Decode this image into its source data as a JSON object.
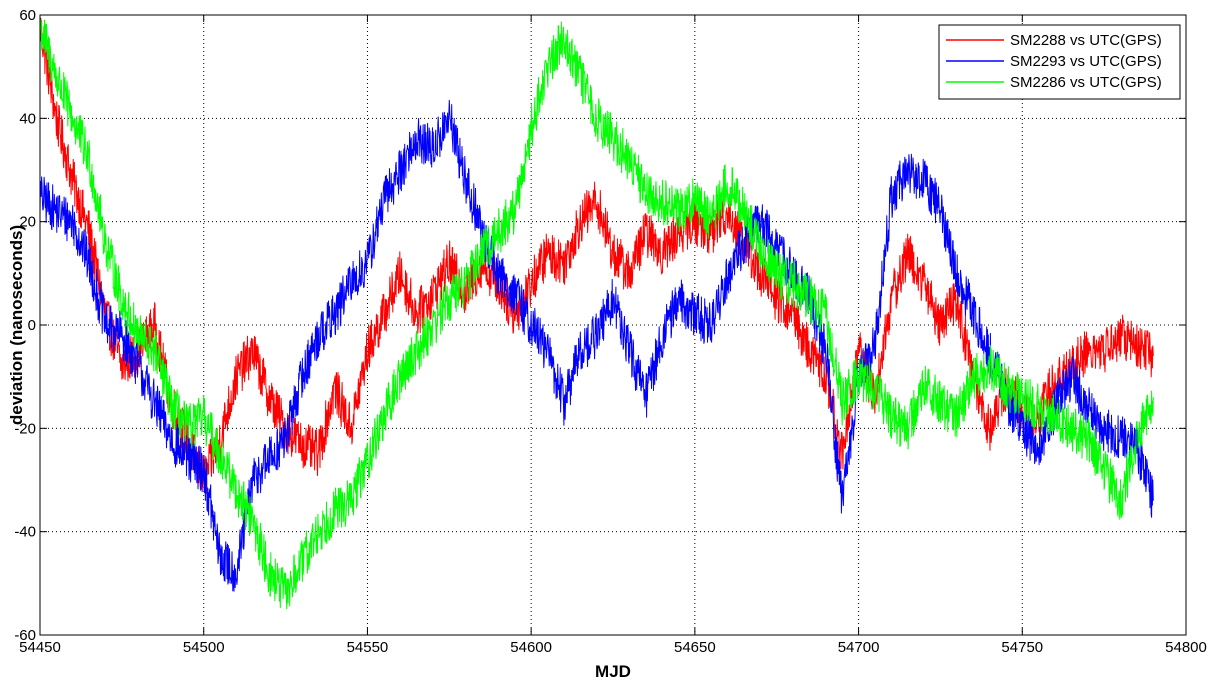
{
  "chart_data": {
    "type": "line",
    "title": "",
    "xlabel": "MJD",
    "ylabel": "deviation (nanoseconds)",
    "xlim": [
      54450,
      54800
    ],
    "ylim": [
      -60,
      60
    ],
    "x_ticks": [
      "54450",
      "54500",
      "54550",
      "54600",
      "54650",
      "54700",
      "54750",
      "54800"
    ],
    "y_ticks": [
      "-60",
      "-40",
      "-20",
      "0",
      "20",
      "40",
      "60"
    ],
    "grid": true,
    "legend_position": "top-right",
    "series": [
      {
        "name": "SM2288 vs UTC(GPS)",
        "color": "#ff0000",
        "points": [
          [
            54450,
            58
          ],
          [
            54455,
            40
          ],
          [
            54460,
            28
          ],
          [
            54465,
            18
          ],
          [
            54470,
            2
          ],
          [
            54475,
            -8
          ],
          [
            54480,
            -5
          ],
          [
            54485,
            0
          ],
          [
            54490,
            -15
          ],
          [
            54495,
            -22
          ],
          [
            54500,
            -30
          ],
          [
            54505,
            -22
          ],
          [
            54510,
            -10
          ],
          [
            54515,
            -5
          ],
          [
            54520,
            -14
          ],
          [
            54525,
            -20
          ],
          [
            54530,
            -23
          ],
          [
            54535,
            -25
          ],
          [
            54540,
            -12
          ],
          [
            54545,
            -20
          ],
          [
            54550,
            -5
          ],
          [
            54555,
            2
          ],
          [
            54560,
            10
          ],
          [
            54565,
            2
          ],
          [
            54570,
            6
          ],
          [
            54575,
            12
          ],
          [
            54580,
            6
          ],
          [
            54585,
            12
          ],
          [
            54590,
            8
          ],
          [
            54595,
            2
          ],
          [
            54600,
            8
          ],
          [
            54605,
            14
          ],
          [
            54610,
            12
          ],
          [
            54615,
            20
          ],
          [
            54620,
            24
          ],
          [
            54625,
            14
          ],
          [
            54630,
            10
          ],
          [
            54635,
            18
          ],
          [
            54640,
            14
          ],
          [
            54645,
            18
          ],
          [
            54650,
            20
          ],
          [
            54655,
            18
          ],
          [
            54660,
            22
          ],
          [
            54665,
            16
          ],
          [
            54670,
            10
          ],
          [
            54675,
            5
          ],
          [
            54680,
            2
          ],
          [
            54685,
            -5
          ],
          [
            54690,
            -10
          ],
          [
            54695,
            -25
          ],
          [
            54700,
            -5
          ],
          [
            54705,
            -14
          ],
          [
            54710,
            5
          ],
          [
            54715,
            14
          ],
          [
            54720,
            8
          ],
          [
            54725,
            0
          ],
          [
            54730,
            5
          ],
          [
            54735,
            -10
          ],
          [
            54740,
            -20
          ],
          [
            54745,
            -12
          ],
          [
            54750,
            -16
          ],
          [
            54755,
            -18
          ],
          [
            54760,
            -10
          ],
          [
            54765,
            -8
          ],
          [
            54770,
            -5
          ],
          [
            54775,
            -5
          ],
          [
            54780,
            -2
          ],
          [
            54785,
            -4
          ],
          [
            54790,
            -6
          ]
        ]
      },
      {
        "name": "SM2293 vs UTC(GPS)",
        "color": "#0000ff",
        "points": [
          [
            54450,
            25
          ],
          [
            54455,
            22
          ],
          [
            54460,
            20
          ],
          [
            54465,
            12
          ],
          [
            54470,
            0
          ],
          [
            54475,
            -2
          ],
          [
            54480,
            -8
          ],
          [
            54485,
            -15
          ],
          [
            54490,
            -22
          ],
          [
            54495,
            -26
          ],
          [
            54500,
            -28
          ],
          [
            54505,
            -45
          ],
          [
            54510,
            -48
          ],
          [
            54515,
            -30
          ],
          [
            54520,
            -26
          ],
          [
            54525,
            -22
          ],
          [
            54530,
            -10
          ],
          [
            54535,
            -2
          ],
          [
            54540,
            2
          ],
          [
            54545,
            8
          ],
          [
            54550,
            12
          ],
          [
            54555,
            24
          ],
          [
            54560,
            30
          ],
          [
            54565,
            36
          ],
          [
            54570,
            34
          ],
          [
            54575,
            40
          ],
          [
            54580,
            28
          ],
          [
            54585,
            18
          ],
          [
            54590,
            10
          ],
          [
            54595,
            6
          ],
          [
            54600,
            0
          ],
          [
            54605,
            -5
          ],
          [
            54610,
            -15
          ],
          [
            54615,
            -5
          ],
          [
            54620,
            -2
          ],
          [
            54625,
            5
          ],
          [
            54630,
            -5
          ],
          [
            54635,
            -14
          ],
          [
            54640,
            -2
          ],
          [
            54645,
            5
          ],
          [
            54650,
            2
          ],
          [
            54655,
            0
          ],
          [
            54660,
            10
          ],
          [
            54665,
            16
          ],
          [
            54670,
            20
          ],
          [
            54675,
            15
          ],
          [
            54680,
            10
          ],
          [
            54685,
            5
          ],
          [
            54690,
            -5
          ],
          [
            54695,
            -35
          ],
          [
            54700,
            -10
          ],
          [
            54705,
            -4
          ],
          [
            54710,
            25
          ],
          [
            54715,
            30
          ],
          [
            54720,
            28
          ],
          [
            54725,
            22
          ],
          [
            54730,
            10
          ],
          [
            54735,
            2
          ],
          [
            54740,
            -5
          ],
          [
            54745,
            -14
          ],
          [
            54750,
            -20
          ],
          [
            54755,
            -24
          ],
          [
            54760,
            -16
          ],
          [
            54765,
            -10
          ],
          [
            54770,
            -16
          ],
          [
            54775,
            -20
          ],
          [
            54780,
            -22
          ],
          [
            54785,
            -24
          ],
          [
            54790,
            -34
          ]
        ]
      },
      {
        "name": "SM2286 vs UTC(GPS)",
        "color": "#00ff00",
        "points": [
          [
            54450,
            58
          ],
          [
            54455,
            48
          ],
          [
            54460,
            40
          ],
          [
            54465,
            32
          ],
          [
            54470,
            16
          ],
          [
            54475,
            5
          ],
          [
            54480,
            -2
          ],
          [
            54485,
            -5
          ],
          [
            54490,
            -15
          ],
          [
            54495,
            -20
          ],
          [
            54500,
            -18
          ],
          [
            54505,
            -25
          ],
          [
            54510,
            -32
          ],
          [
            54515,
            -38
          ],
          [
            54520,
            -48
          ],
          [
            54525,
            -52
          ],
          [
            54530,
            -46
          ],
          [
            54535,
            -40
          ],
          [
            54540,
            -36
          ],
          [
            54545,
            -34
          ],
          [
            54550,
            -26
          ],
          [
            54555,
            -18
          ],
          [
            54560,
            -10
          ],
          [
            54565,
            -5
          ],
          [
            54570,
            0
          ],
          [
            54575,
            5
          ],
          [
            54580,
            8
          ],
          [
            54585,
            14
          ],
          [
            54590,
            18
          ],
          [
            54595,
            22
          ],
          [
            54600,
            38
          ],
          [
            54605,
            50
          ],
          [
            54610,
            56
          ],
          [
            54615,
            48
          ],
          [
            54620,
            40
          ],
          [
            54625,
            36
          ],
          [
            54630,
            32
          ],
          [
            54635,
            26
          ],
          [
            54640,
            24
          ],
          [
            54645,
            22
          ],
          [
            54650,
            25
          ],
          [
            54655,
            20
          ],
          [
            54660,
            28
          ],
          [
            54665,
            22
          ],
          [
            54670,
            15
          ],
          [
            54675,
            10
          ],
          [
            54680,
            8
          ],
          [
            54685,
            5
          ],
          [
            54690,
            2
          ],
          [
            54695,
            -15
          ],
          [
            54700,
            -10
          ],
          [
            54705,
            -12
          ],
          [
            54710,
            -18
          ],
          [
            54715,
            -20
          ],
          [
            54720,
            -12
          ],
          [
            54725,
            -15
          ],
          [
            54730,
            -18
          ],
          [
            54735,
            -10
          ],
          [
            54740,
            -8
          ],
          [
            54745,
            -12
          ],
          [
            54750,
            -14
          ],
          [
            54755,
            -16
          ],
          [
            54760,
            -18
          ],
          [
            54765,
            -20
          ],
          [
            54770,
            -22
          ],
          [
            54775,
            -28
          ],
          [
            54780,
            -34
          ],
          [
            54785,
            -22
          ],
          [
            54790,
            -14
          ]
        ]
      }
    ]
  }
}
